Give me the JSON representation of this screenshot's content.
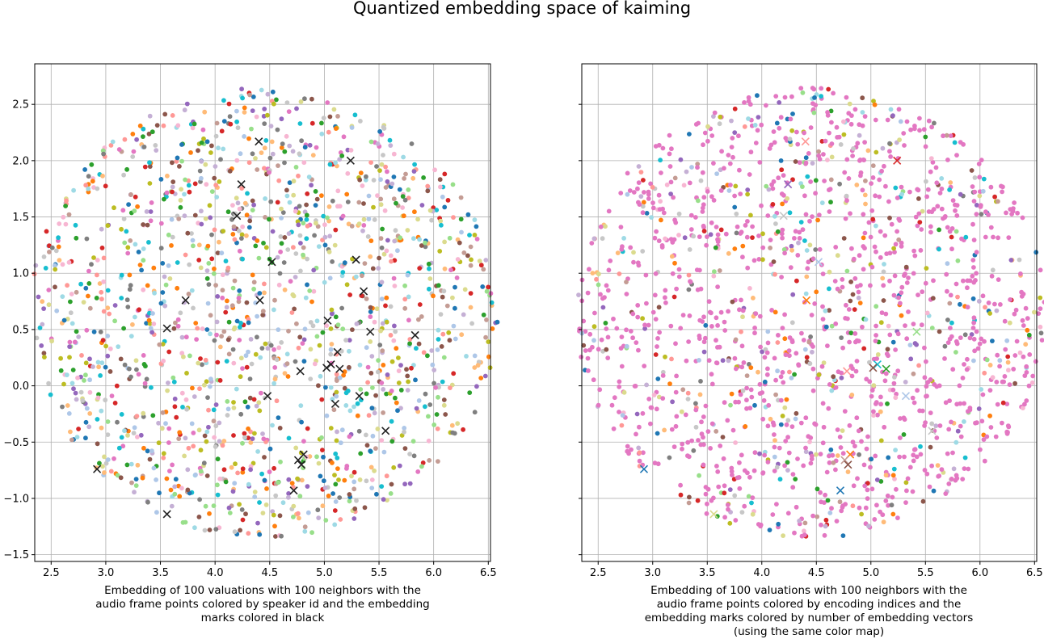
{
  "figure": {
    "title": "Quantized embedding space of kaiming"
  },
  "chart_data": [
    {
      "type": "scatter",
      "title": "",
      "xlabel": "Embedding of 100 valuations with 100 neighbors with the\naudio frame points colored by speaker id and the embedding\nmarks colored in black",
      "ylabel": "",
      "xlim": [
        2.35,
        6.52
      ],
      "ylim": [
        -1.56,
        2.86
      ],
      "xticks": [
        "2.5",
        "3.0",
        "3.5",
        "4.0",
        "4.5",
        "5.0",
        "5.5",
        "6.0",
        "6.5"
      ],
      "yticks": [
        "−1.5",
        "−1.0",
        "−0.5",
        "0.0",
        "0.5",
        "1.0",
        "1.5",
        "2.0",
        "2.5"
      ],
      "grid": true,
      "point_color_scheme": "tab20 by speaker id",
      "audio_point_count_approx": 1600,
      "audio_point_region": {
        "center": [
          4.45,
          0.65
        ],
        "radius_x": 2.15,
        "radius_y": 2.0
      },
      "embedding_marker": "x",
      "embedding_color": "#222222",
      "embedding_points": [
        [
          4.4,
          2.17
        ],
        [
          5.24,
          2.0
        ],
        [
          4.24,
          1.79
        ],
        [
          4.2,
          1.51
        ],
        [
          4.52,
          1.1
        ],
        [
          5.29,
          1.12
        ],
        [
          5.36,
          0.84
        ],
        [
          3.73,
          0.76
        ],
        [
          4.41,
          0.76
        ],
        [
          3.56,
          0.51
        ],
        [
          5.03,
          0.58
        ],
        [
          5.42,
          0.48
        ],
        [
          5.83,
          0.45
        ],
        [
          5.12,
          0.3
        ],
        [
          5.02,
          0.16
        ],
        [
          5.06,
          0.19
        ],
        [
          5.14,
          0.15
        ],
        [
          4.78,
          0.13
        ],
        [
          4.48,
          -0.09
        ],
        [
          5.1,
          -0.16
        ],
        [
          5.32,
          -0.09
        ],
        [
          5.56,
          -0.4
        ],
        [
          4.81,
          -0.61
        ],
        [
          4.76,
          -0.66
        ],
        [
          4.79,
          -0.7
        ],
        [
          2.92,
          -0.74
        ],
        [
          4.72,
          -0.93
        ],
        [
          3.56,
          -1.14
        ]
      ]
    },
    {
      "type": "scatter",
      "title": "",
      "xlabel": "Embedding of 100 valuations with 100 neighbors with the\naudio frame points colored by encoding indices and the\nembedding marks colored by number of embedding vectors\n(using the same color map)",
      "ylabel": "",
      "xlim": [
        2.35,
        6.52
      ],
      "ylim": [
        -1.56,
        2.86
      ],
      "xticks": [
        "2.5",
        "3.0",
        "3.5",
        "4.0",
        "4.5",
        "5.0",
        "5.5",
        "6.0",
        "6.5"
      ],
      "yticks": [],
      "grid": true,
      "point_color_scheme": "tab20 by encoding index (mostly pink)",
      "audio_point_count_approx": 1600,
      "audio_point_region": {
        "center": [
          4.45,
          0.65
        ],
        "radius_x": 2.15,
        "radius_y": 2.0
      },
      "embedding_marker": "x",
      "embedding_points": [
        {
          "x": 4.4,
          "y": 2.17,
          "color": "#ff9896"
        },
        {
          "x": 5.24,
          "y": 2.0,
          "color": "#d62728"
        },
        {
          "x": 4.24,
          "y": 1.79,
          "color": "#9467bd"
        },
        {
          "x": 4.2,
          "y": 1.51,
          "color": "#c7c7c7"
        },
        {
          "x": 4.52,
          "y": 1.1,
          "color": "#aec7e8"
        },
        {
          "x": 4.41,
          "y": 0.76,
          "color": "#ff7f0e"
        },
        {
          "x": 5.42,
          "y": 0.48,
          "color": "#98df8a"
        },
        {
          "x": 5.06,
          "y": 0.19,
          "color": "#17becf"
        },
        {
          "x": 5.14,
          "y": 0.15,
          "color": "#2ca02c"
        },
        {
          "x": 5.02,
          "y": 0.16,
          "color": "#8c564b"
        },
        {
          "x": 4.78,
          "y": 0.13,
          "color": "#ff9896"
        },
        {
          "x": 5.32,
          "y": -0.09,
          "color": "#aec7e8"
        },
        {
          "x": 5.56,
          "y": -0.4,
          "color": "#c7c7c7"
        },
        {
          "x": 4.81,
          "y": -0.61,
          "color": "#ff7f0e"
        },
        {
          "x": 4.76,
          "y": -0.66,
          "color": "#c49c94"
        },
        {
          "x": 4.79,
          "y": -0.7,
          "color": "#8c564b"
        },
        {
          "x": 2.92,
          "y": -0.74,
          "color": "#1f77b4"
        },
        {
          "x": 4.72,
          "y": -0.93,
          "color": "#1f77b4"
        },
        {
          "x": 3.56,
          "y": -1.14,
          "color": "#dbdb8d"
        }
      ]
    }
  ],
  "colors": {
    "palette": [
      "#1f77b4",
      "#aec7e8",
      "#ff7f0e",
      "#ffbb78",
      "#2ca02c",
      "#98df8a",
      "#d62728",
      "#ff9896",
      "#9467bd",
      "#c5b0d5",
      "#8c564b",
      "#c49c94",
      "#e377c2",
      "#f7b6d2",
      "#7f7f7f",
      "#c7c7c7",
      "#bcbd22",
      "#dbdb8d",
      "#17becf",
      "#9edae5"
    ],
    "grid": "#b0b0b0",
    "axis": "#000000"
  }
}
